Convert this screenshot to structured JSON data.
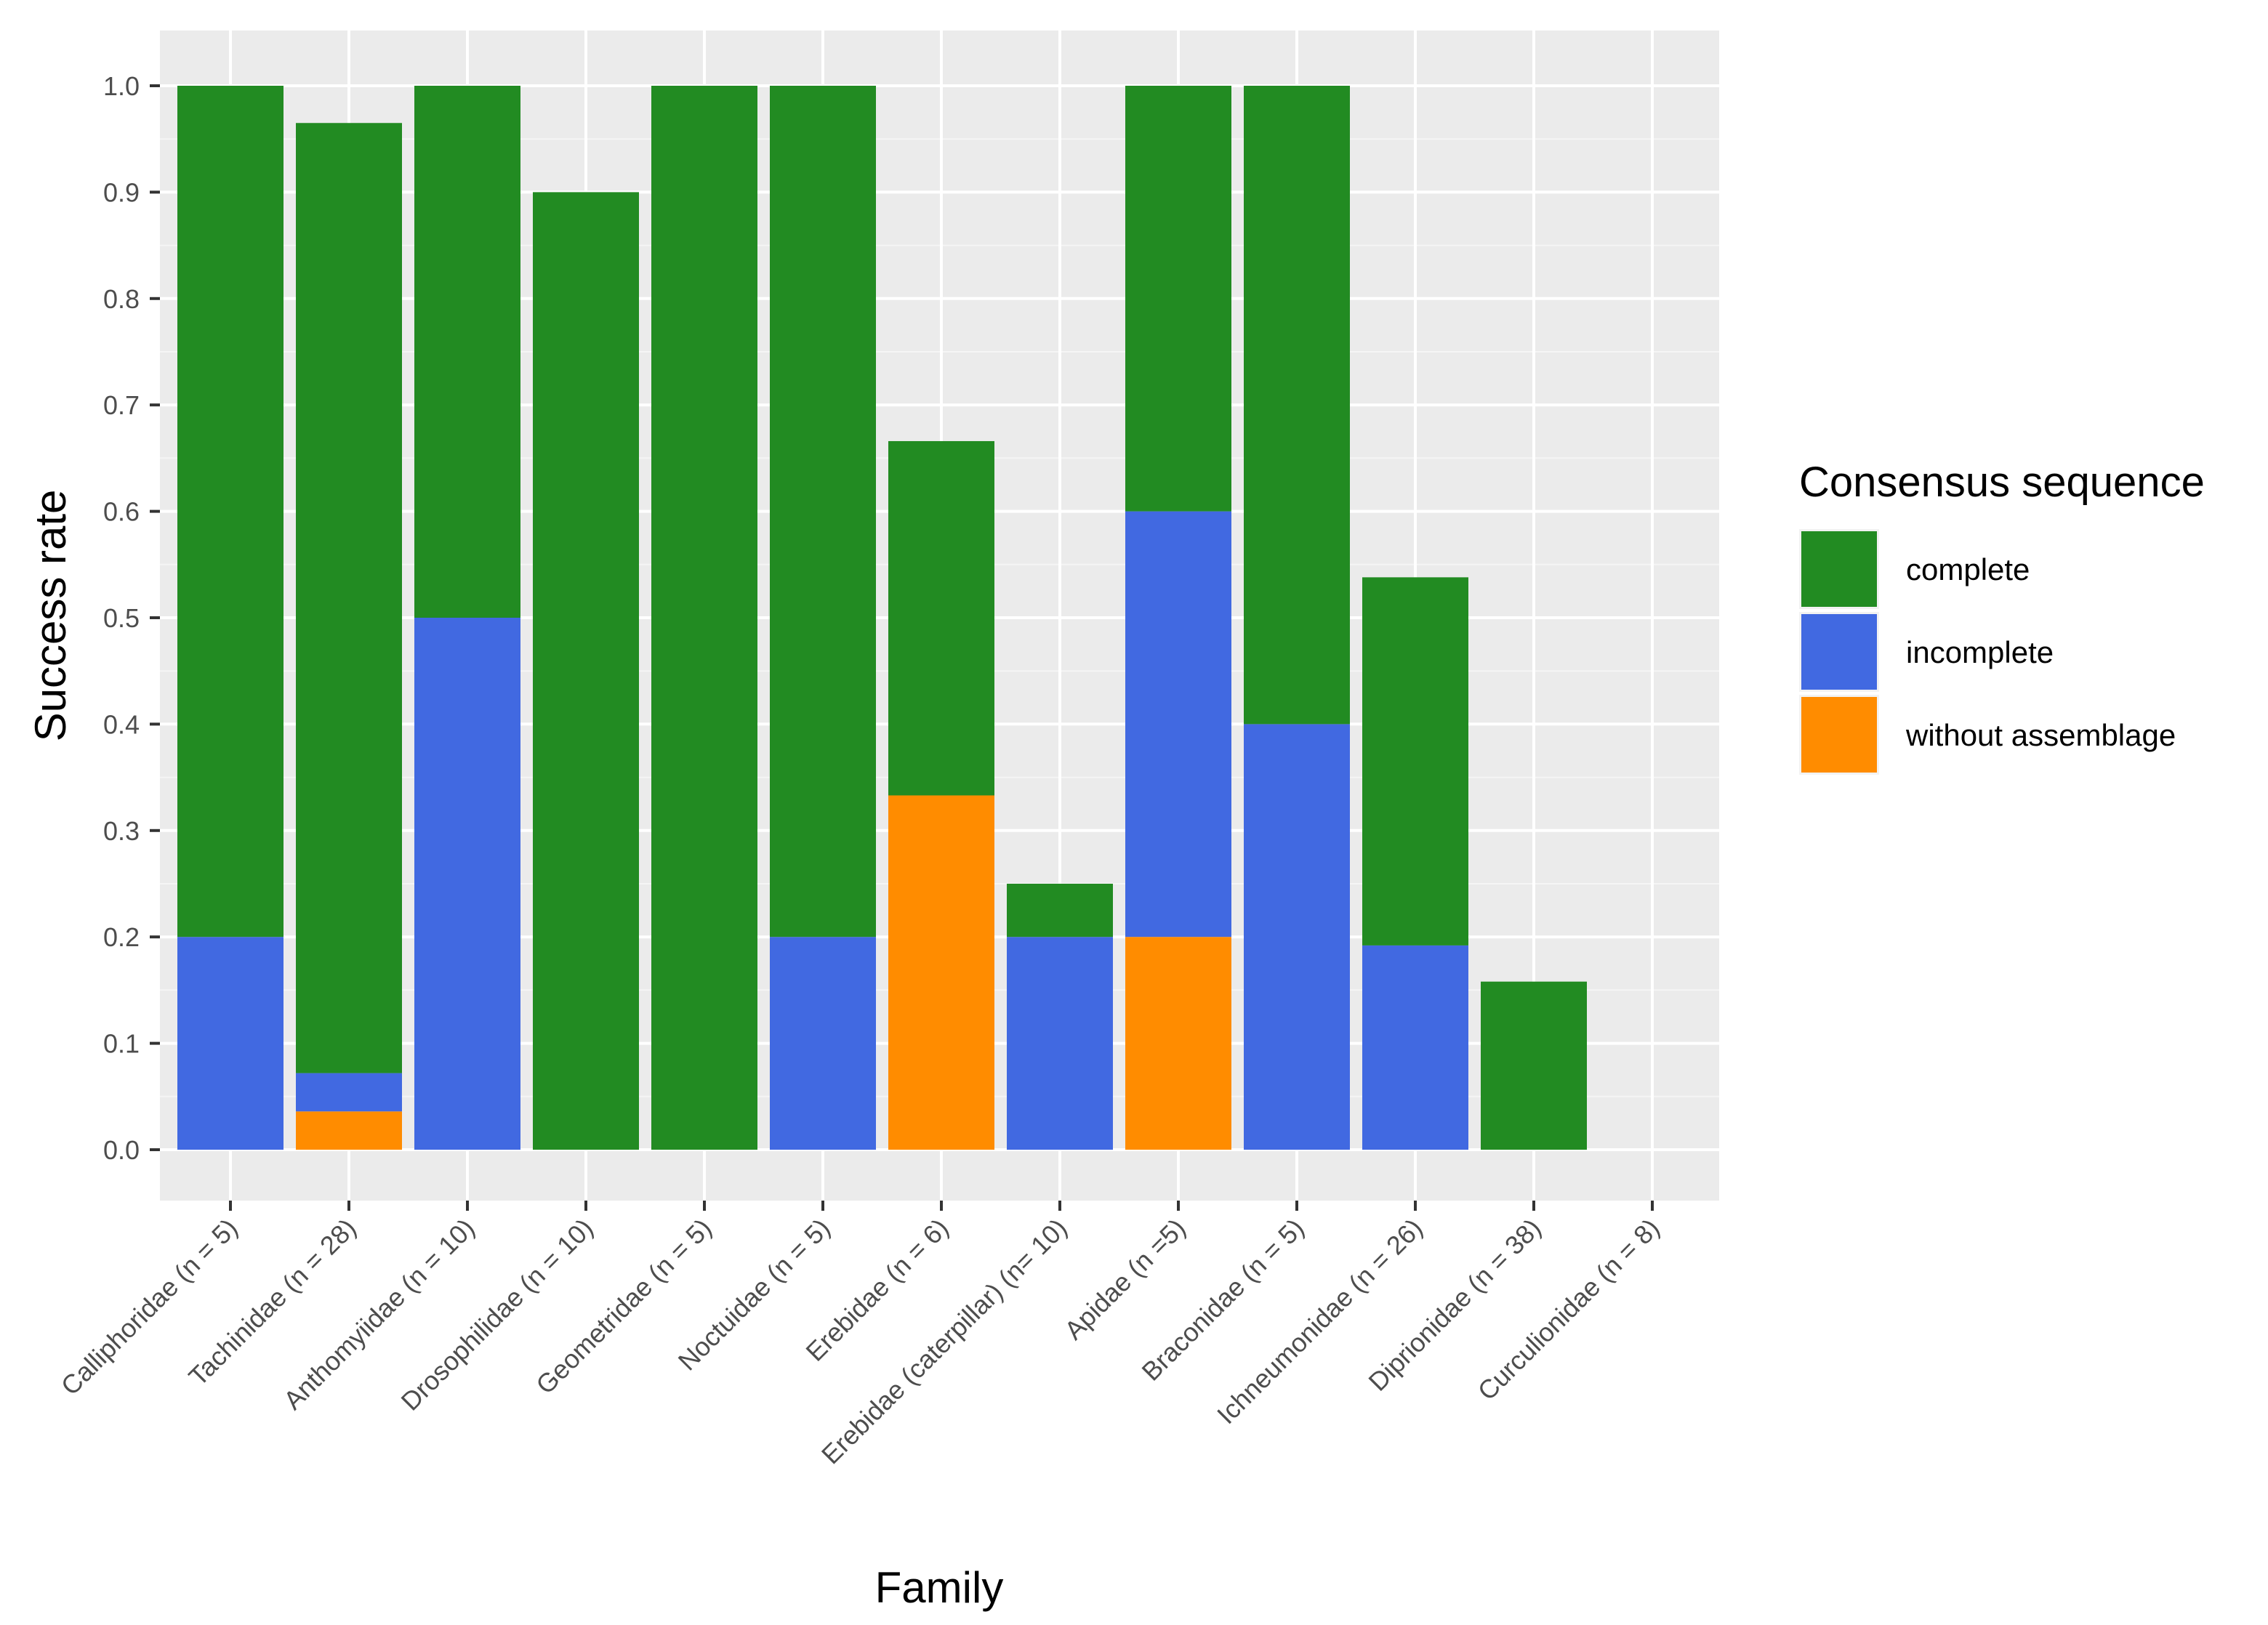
{
  "chart_data": {
    "type": "bar",
    "stacked": true,
    "categories": [
      "Calliphoridae (n = 5)",
      "Tachinidae (n = 28)",
      "Anthomyiidae (n = 10)",
      "Drosophilidae (n = 10)",
      "Geometridae (n = 5)",
      "Noctuidae (n = 5)",
      "Erebidae (n = 6)",
      "Erebidae (caterpillar) (n= 10)",
      "Apidae (n =5)",
      "Braconidae (n = 5)",
      "Ichneumonidae (n = 26)",
      "Diprionidae (n = 38)",
      "Curculionidae (n = 8)"
    ],
    "series": [
      {
        "name": "without assemblage",
        "color": "#FF8C00",
        "values": [
          0,
          0.036,
          0,
          0,
          0,
          0,
          0.333,
          0,
          0.2,
          0,
          0,
          0,
          0
        ]
      },
      {
        "name": "incomplete",
        "color": "#4169E1",
        "values": [
          0.2,
          0.036,
          0.5,
          0,
          0,
          0.2,
          0,
          0.2,
          0.4,
          0.4,
          0.192,
          0,
          0
        ]
      },
      {
        "name": "complete",
        "color": "#228B22",
        "values": [
          0.8,
          0.893,
          0.5,
          0.9,
          1.0,
          0.8,
          0.333,
          0.05,
          0.4,
          0.6,
          0.346,
          0.158,
          0
        ]
      }
    ],
    "xlabel": "Family",
    "ylabel": "Success rate",
    "ylim": [
      0,
      1.05
    ],
    "yticks": [
      0.0,
      0.1,
      0.2,
      0.3,
      0.4,
      0.5,
      0.6,
      0.7,
      0.8,
      0.9,
      1.0
    ],
    "ytick_labels": [
      "0.0",
      "0.1",
      "0.2",
      "0.3",
      "0.4",
      "0.5",
      "0.6",
      "0.7",
      "0.8",
      "0.9",
      "1.0"
    ],
    "grid": true,
    "legend": {
      "title": "Consensus sequence",
      "position": "right",
      "items": [
        {
          "label": "complete",
          "color": "#228B22"
        },
        {
          "label": "incomplete",
          "color": "#4169E1"
        },
        {
          "label": "without assemblage",
          "color": "#FF8C00"
        }
      ]
    }
  }
}
